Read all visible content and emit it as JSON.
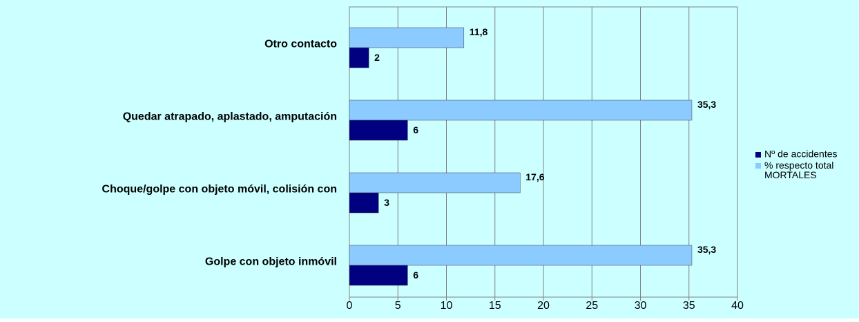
{
  "chart_data": {
    "type": "bar",
    "orientation": "horizontal",
    "categories": [
      "Otro contacto",
      "Quedar atrapado, aplastado, amputación",
      "Choque/golpe con objeto móvil, colisión con",
      "Golpe con objeto inmóvil"
    ],
    "series": [
      {
        "name": "Nº de accidentes",
        "color": "#000080",
        "values": [
          2,
          6,
          3,
          6
        ]
      },
      {
        "name": "% respecto total MORTALES",
        "color": "#8ccbff",
        "values": [
          11.8,
          35.3,
          17.6,
          35.3
        ],
        "value_labels": [
          "11,8",
          "35,3",
          "17,6",
          "35,3"
        ]
      }
    ],
    "xlim": [
      0,
      40
    ],
    "xticks": [
      0,
      5,
      10,
      15,
      20,
      25,
      30,
      35,
      40
    ],
    "grid": true,
    "legend": "right"
  }
}
